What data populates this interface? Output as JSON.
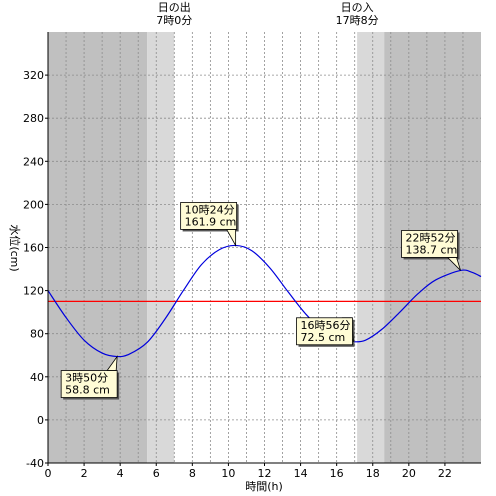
{
  "chart_data": {
    "type": "line",
    "xlabel": "時間(h)",
    "ylabel": "水位(cm)",
    "xlim": [
      0,
      24
    ],
    "ylim": [
      -40,
      360
    ],
    "x_ticks": [
      0,
      2,
      4,
      6,
      8,
      10,
      12,
      14,
      16,
      18,
      20,
      22
    ],
    "y_ticks": [
      -40,
      0,
      40,
      80,
      120,
      160,
      200,
      240,
      280,
      320
    ],
    "grid": true,
    "reference_line": {
      "y": 110,
      "color": "#ff0000"
    },
    "daylight": {
      "sunrise": {
        "label": "日の出",
        "time_label": "7時0分",
        "hour": 7.0
      },
      "sunset": {
        "label": "日の入",
        "time_label": "17時8分",
        "hour": 17.1333
      },
      "twilight_hours": 1.5,
      "night_color": "#c0c0c0",
      "twilight_color": "#d9d9d9",
      "day_color": "#ffffff"
    },
    "series": [
      {
        "color": "#0000dd",
        "x": [
          0,
          1,
          2,
          3,
          3.833,
          4.5,
          5.5,
          6.5,
          7.5,
          8.5,
          9.5,
          10.4,
          11.3,
          12.3,
          13.3,
          14.3,
          15.3,
          16.2,
          16.933,
          17.6,
          18.5,
          19.5,
          20.5,
          21.5,
          22.867,
          23.5,
          24
        ],
        "y": [
          120,
          95,
          74,
          62,
          58.8,
          61,
          72,
          94,
          120,
          144,
          158,
          161.9,
          157,
          141,
          119,
          98,
          82,
          74,
          72.5,
          74,
          84,
          100,
          117,
          130,
          138.7,
          137,
          133
        ]
      }
    ],
    "annotations": [
      {
        "time_label": "3時50分",
        "value_label": "58.8 cm",
        "x": 3.833,
        "y": 58.8
      },
      {
        "time_label": "10時24分",
        "value_label": "161.9 cm",
        "x": 10.4,
        "y": 161.9
      },
      {
        "time_label": "16時56分",
        "value_label": "72.5 cm",
        "x": 16.933,
        "y": 72.5
      },
      {
        "time_label": "22時52分",
        "value_label": "138.7 cm",
        "x": 22.867,
        "y": 138.7
      }
    ]
  }
}
